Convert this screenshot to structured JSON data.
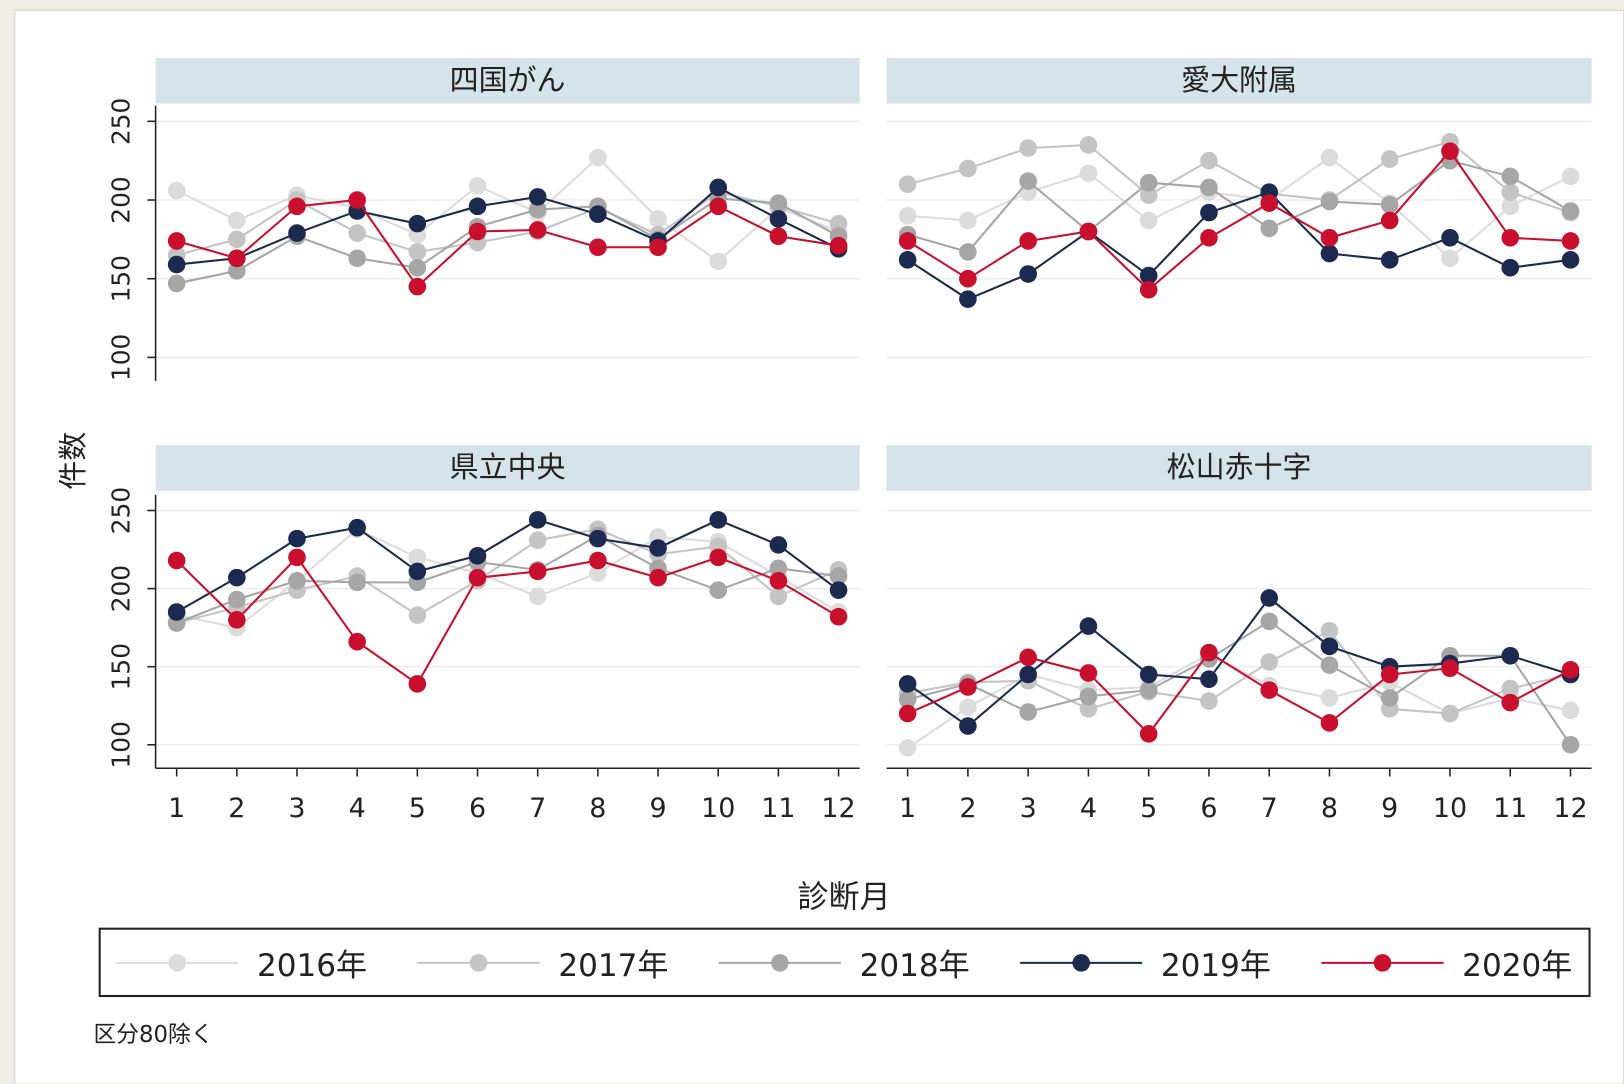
{
  "ylabel": "件数",
  "xlabel": "診断月",
  "note": "区分80除く",
  "chart_data": [
    {
      "type": "line",
      "title": "四国がん",
      "x": [
        1,
        2,
        3,
        4,
        5,
        6,
        7,
        8,
        9,
        10,
        11,
        12
      ],
      "xlim": [
        0.65,
        12.35
      ],
      "xticks": [
        1,
        2,
        3,
        4,
        5,
        6,
        7,
        8,
        9,
        10,
        11,
        12
      ],
      "ylim": [
        85,
        260
      ],
      "yticks": [
        100,
        150,
        200,
        250
      ],
      "grid": true,
      "series": [
        {
          "name": "2016年",
          "color": "#dcdcdc",
          "values": [
            206,
            187,
            203,
            195,
            178,
            209,
            192,
            227,
            188,
            161,
            195,
            180
          ]
        },
        {
          "name": "2017年",
          "color": "#c4c4c4",
          "values": [
            165,
            175,
            200,
            179,
            167,
            173,
            180,
            195,
            178,
            205,
            196,
            185
          ]
        },
        {
          "name": "2018年",
          "color": "#a6a6a6",
          "values": [
            147,
            155,
            177,
            163,
            157,
            183,
            194,
            196,
            175,
            201,
            198,
            177
          ]
        },
        {
          "name": "2019年",
          "color": "#1b2a4e",
          "values": [
            159,
            163,
            179,
            193,
            185,
            196,
            202,
            191,
            174,
            208,
            188,
            169
          ]
        },
        {
          "name": "2020年",
          "color": "#c8102e",
          "values": [
            174,
            163,
            196,
            200,
            145,
            180,
            181,
            170,
            170,
            196,
            177,
            171
          ]
        }
      ]
    },
    {
      "type": "line",
      "title": "愛大附属",
      "x": [
        1,
        2,
        3,
        4,
        5,
        6,
        7,
        8,
        9,
        10,
        11,
        12
      ],
      "xlim": [
        0.65,
        12.35
      ],
      "xticks": [
        1,
        2,
        3,
        4,
        5,
        6,
        7,
        8,
        9,
        10,
        11,
        12
      ],
      "ylim": [
        85,
        260
      ],
      "yticks": [
        100,
        150,
        200,
        250
      ],
      "grid": true,
      "series": [
        {
          "name": "2016年",
          "color": "#dcdcdc",
          "values": [
            190,
            187,
            205,
            217,
            187,
            205,
            200,
            227,
            198,
            163,
            196,
            215
          ]
        },
        {
          "name": "2017年",
          "color": "#c4c4c4",
          "values": [
            210,
            220,
            233,
            235,
            203,
            225,
            204,
            200,
            226,
            237,
            205,
            192
          ]
        },
        {
          "name": "2018年",
          "color": "#a6a6a6",
          "values": [
            178,
            167,
            212,
            180,
            211,
            208,
            182,
            199,
            197,
            225,
            215,
            193
          ]
        },
        {
          "name": "2019年",
          "color": "#1b2a4e",
          "values": [
            162,
            137,
            153,
            180,
            152,
            192,
            205,
            166,
            162,
            176,
            157,
            162
          ]
        },
        {
          "name": "2020年",
          "color": "#c8102e",
          "values": [
            174,
            150,
            174,
            180,
            143,
            176,
            198,
            176,
            187,
            231,
            176,
            174
          ]
        }
      ]
    },
    {
      "type": "line",
      "title": "県立中央",
      "x": [
        1,
        2,
        3,
        4,
        5,
        6,
        7,
        8,
        9,
        10,
        11,
        12
      ],
      "xlim": [
        0.65,
        12.35
      ],
      "xticks": [
        1,
        2,
        3,
        4,
        5,
        6,
        7,
        8,
        9,
        10,
        11,
        12
      ],
      "ylim": [
        85,
        260
      ],
      "yticks": [
        100,
        150,
        200,
        250
      ],
      "grid": true,
      "series": [
        {
          "name": "2016年",
          "color": "#dcdcdc",
          "values": [
            183,
            175,
            205,
            238,
            220,
            210,
            195,
            210,
            233,
            230,
            208,
            185
          ]
        },
        {
          "name": "2017年",
          "color": "#c4c4c4",
          "values": [
            178,
            188,
            199,
            208,
            183,
            205,
            231,
            238,
            222,
            227,
            195,
            212
          ]
        },
        {
          "name": "2018年",
          "color": "#a6a6a6",
          "values": [
            178,
            193,
            205,
            204,
            204,
            217,
            212,
            234,
            213,
            199,
            213,
            208
          ]
        },
        {
          "name": "2019年",
          "color": "#1b2a4e",
          "values": [
            185,
            207,
            232,
            239,
            211,
            221,
            244,
            232,
            226,
            244,
            228,
            199
          ]
        },
        {
          "name": "2020年",
          "color": "#c8102e",
          "values": [
            218,
            180,
            220,
            166,
            139,
            207,
            211,
            218,
            207,
            220,
            205,
            182
          ]
        }
      ]
    },
    {
      "type": "line",
      "title": "松山赤十字",
      "x": [
        1,
        2,
        3,
        4,
        5,
        6,
        7,
        8,
        9,
        10,
        11,
        12
      ],
      "xlim": [
        0.65,
        12.35
      ],
      "xticks": [
        1,
        2,
        3,
        4,
        5,
        6,
        7,
        8,
        9,
        10,
        11,
        12
      ],
      "ylim": [
        85,
        260
      ],
      "yticks": [
        100,
        150,
        200,
        250
      ],
      "grid": true,
      "series": [
        {
          "name": "2016年",
          "color": "#dcdcdc",
          "values": [
            98,
            124,
            145,
            135,
            137,
            158,
            138,
            130,
            140,
            120,
            130,
            122
          ]
        },
        {
          "name": "2017年",
          "color": "#c4c4c4",
          "values": [
            133,
            140,
            141,
            123,
            134,
            128,
            153,
            173,
            123,
            120,
            136,
            145
          ]
        },
        {
          "name": "2018年",
          "color": "#a6a6a6",
          "values": [
            129,
            139,
            121,
            131,
            135,
            155,
            179,
            151,
            130,
            157,
            157,
            100
          ]
        },
        {
          "name": "2019年",
          "color": "#1b2a4e",
          "values": [
            139,
            112,
            145,
            176,
            145,
            142,
            194,
            163,
            150,
            152,
            157,
            145
          ]
        },
        {
          "name": "2020年",
          "color": "#c8102e",
          "values": [
            120,
            137,
            156,
            146,
            107,
            159,
            135,
            114,
            145,
            149,
            127,
            148
          ]
        }
      ]
    }
  ]
}
